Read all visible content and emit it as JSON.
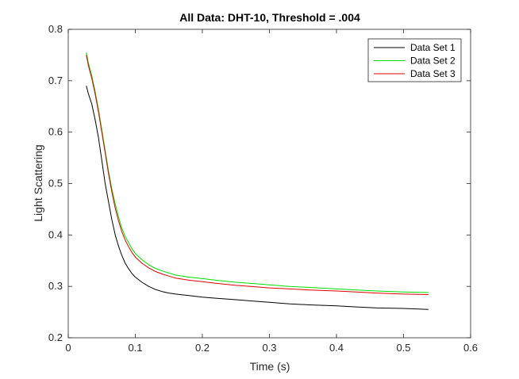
{
  "chart_data": {
    "type": "line",
    "title": "All Data: DHT-10, Threshold = .004",
    "xlabel": "Time (s)",
    "ylabel": "Light Scattering",
    "xlim": [
      0,
      0.6
    ],
    "ylim": [
      0.2,
      0.8
    ],
    "xticks": [
      0,
      0.1,
      0.2,
      0.3,
      0.4,
      0.5,
      0.6
    ],
    "yticks": [
      0.2,
      0.3,
      0.4,
      0.5,
      0.6,
      0.7,
      0.8
    ],
    "xtick_labels": [
      "0",
      "0.1",
      "0.2",
      "0.3",
      "0.4",
      "0.5",
      "0.6"
    ],
    "ytick_labels": [
      "0.2",
      "0.3",
      "0.4",
      "0.5",
      "0.6",
      "0.7",
      "0.8"
    ],
    "grid": false,
    "legend_position": "top-right",
    "series": [
      {
        "name": "Data Set 1",
        "color": "#000000",
        "x": [
          0.027,
          0.03,
          0.035,
          0.04,
          0.045,
          0.05,
          0.055,
          0.06,
          0.065,
          0.07,
          0.075,
          0.08,
          0.085,
          0.09,
          0.095,
          0.1,
          0.11,
          0.12,
          0.13,
          0.14,
          0.15,
          0.16,
          0.18,
          0.2,
          0.22,
          0.25,
          0.28,
          0.3,
          0.33,
          0.36,
          0.4,
          0.43,
          0.46,
          0.5,
          0.537
        ],
        "y": [
          0.69,
          0.675,
          0.655,
          0.625,
          0.59,
          0.545,
          0.5,
          0.465,
          0.43,
          0.4,
          0.378,
          0.36,
          0.345,
          0.334,
          0.325,
          0.318,
          0.308,
          0.3,
          0.294,
          0.29,
          0.287,
          0.285,
          0.282,
          0.279,
          0.277,
          0.274,
          0.271,
          0.269,
          0.266,
          0.264,
          0.262,
          0.26,
          0.258,
          0.257,
          0.255
        ]
      },
      {
        "name": "Data Set 2",
        "color": "#00dd00",
        "x": [
          0.027,
          0.03,
          0.035,
          0.04,
          0.045,
          0.05,
          0.055,
          0.06,
          0.065,
          0.07,
          0.075,
          0.08,
          0.085,
          0.09,
          0.095,
          0.1,
          0.11,
          0.12,
          0.13,
          0.14,
          0.15,
          0.16,
          0.18,
          0.2,
          0.22,
          0.25,
          0.28,
          0.3,
          0.33,
          0.36,
          0.4,
          0.43,
          0.46,
          0.5,
          0.537
        ],
        "y": [
          0.755,
          0.735,
          0.71,
          0.68,
          0.645,
          0.605,
          0.565,
          0.525,
          0.49,
          0.46,
          0.435,
          0.413,
          0.397,
          0.385,
          0.373,
          0.364,
          0.352,
          0.342,
          0.335,
          0.33,
          0.326,
          0.322,
          0.318,
          0.315,
          0.312,
          0.308,
          0.305,
          0.303,
          0.3,
          0.298,
          0.295,
          0.293,
          0.291,
          0.289,
          0.288
        ]
      },
      {
        "name": "Data Set 3",
        "color": "#dd0000",
        "x": [
          0.027,
          0.03,
          0.035,
          0.04,
          0.045,
          0.05,
          0.055,
          0.06,
          0.065,
          0.07,
          0.075,
          0.08,
          0.085,
          0.09,
          0.095,
          0.1,
          0.11,
          0.12,
          0.13,
          0.14,
          0.15,
          0.16,
          0.18,
          0.2,
          0.22,
          0.25,
          0.28,
          0.3,
          0.33,
          0.36,
          0.4,
          0.43,
          0.46,
          0.5,
          0.537
        ],
        "y": [
          0.75,
          0.73,
          0.705,
          0.675,
          0.64,
          0.6,
          0.56,
          0.52,
          0.484,
          0.452,
          0.427,
          0.406,
          0.39,
          0.377,
          0.366,
          0.357,
          0.345,
          0.336,
          0.329,
          0.324,
          0.32,
          0.316,
          0.312,
          0.309,
          0.306,
          0.302,
          0.299,
          0.297,
          0.295,
          0.293,
          0.291,
          0.289,
          0.287,
          0.285,
          0.284
        ]
      }
    ]
  }
}
